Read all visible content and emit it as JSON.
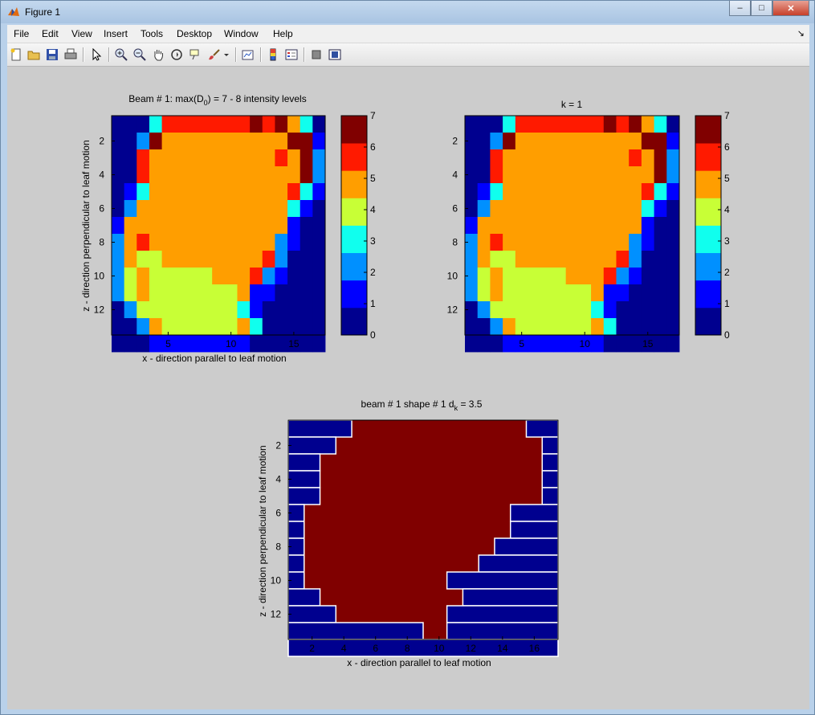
{
  "window": {
    "title": "Figure 1",
    "buttons": {
      "minimize": "–",
      "maximize": "□",
      "close": "✕"
    }
  },
  "menu": {
    "items": [
      "File",
      "Edit",
      "View",
      "Insert",
      "Tools",
      "Desktop",
      "Window",
      "Help"
    ],
    "end_arrow": "↘"
  },
  "toolbar": {
    "icons": [
      "new-figure-icon",
      "open-file-icon",
      "save-icon",
      "print-icon",
      "edit-plot-arrow-icon",
      "zoom-in-icon",
      "zoom-out-icon",
      "pan-hand-icon",
      "rotate-3d-icon",
      "data-cursor-icon",
      "brush-icon",
      "brush-dropdown-icon",
      "link-plot-icon",
      "colorbar-icon",
      "legend-icon",
      "hide-plot-tools-icon",
      "show-plot-tools-icon"
    ]
  },
  "plots": {
    "top_left": {
      "title": "Beam # 1: max(D0) = 7 - 8 intensity levels",
      "title_parts": [
        "Beam # 1: max(D",
        "0",
        ") = 7 - 8 intensity levels"
      ],
      "xlabel": "x - direction parallel to leaf motion",
      "ylabel": "z - direction perpendicular to leaf motion",
      "xticks": [
        "5",
        "10",
        "15"
      ],
      "yticks": [
        "2",
        "4",
        "6",
        "8",
        "10",
        "12"
      ],
      "colorbar_ticks": [
        "0",
        "1",
        "2",
        "3",
        "4",
        "5",
        "6",
        "7"
      ]
    },
    "top_right": {
      "title": "k = 1",
      "xticks": [
        "5",
        "10",
        "15"
      ],
      "yticks": [
        "2",
        "4",
        "6",
        "8",
        "10",
        "12"
      ],
      "colorbar_ticks": [
        "0",
        "1",
        "2",
        "3",
        "4",
        "5",
        "6",
        "7"
      ]
    },
    "bottom": {
      "title_parts": [
        "beam # 1 shape # 1 d",
        "k",
        " = 3.5"
      ],
      "xlabel": "x - direction parallel to leaf motion",
      "ylabel": "z - direction perpendicular to leaf motion",
      "xticks": [
        "2",
        "4",
        "6",
        "8",
        "10",
        "12",
        "14",
        "16"
      ],
      "yticks": [
        "2",
        "4",
        "6",
        "8",
        "10",
        "12"
      ]
    }
  },
  "chart_data": [
    {
      "type": "heatmap",
      "title": "Beam # 1: max(D0) = 7 - 8 intensity levels",
      "xlabel": "x - direction parallel to leaf motion",
      "ylabel": "z - direction perpendicular to leaf motion",
      "xlim": [
        0.5,
        17.5
      ],
      "ylim": [
        0.5,
        13.5
      ],
      "clim": [
        0,
        7
      ],
      "colormap": "jet",
      "matrix": [
        [
          0,
          0,
          0,
          3,
          6,
          6,
          6,
          6,
          6,
          6,
          6,
          7,
          6,
          7,
          5,
          3,
          0
        ],
        [
          0,
          0,
          2,
          7,
          5,
          5,
          5,
          5,
          5,
          5,
          5,
          5,
          5,
          5,
          7,
          7,
          1
        ],
        [
          0,
          0,
          6,
          5,
          5,
          5,
          5,
          5,
          5,
          5,
          5,
          5,
          5,
          6,
          5,
          7,
          2
        ],
        [
          0,
          0,
          6,
          5,
          5,
          5,
          5,
          5,
          5,
          5,
          5,
          5,
          5,
          5,
          5,
          7,
          2
        ],
        [
          0,
          1,
          3,
          5,
          5,
          5,
          5,
          5,
          5,
          5,
          5,
          5,
          5,
          5,
          6,
          3,
          1
        ],
        [
          0,
          2,
          5,
          5,
          5,
          5,
          5,
          5,
          5,
          5,
          5,
          5,
          5,
          5,
          3,
          1,
          0
        ],
        [
          1,
          5,
          5,
          5,
          5,
          5,
          5,
          5,
          5,
          5,
          5,
          5,
          5,
          5,
          1,
          0,
          0
        ],
        [
          2,
          5,
          6,
          5,
          5,
          5,
          5,
          5,
          5,
          5,
          5,
          5,
          5,
          2,
          1,
          0,
          0
        ],
        [
          2,
          5,
          4,
          4,
          5,
          5,
          5,
          5,
          5,
          5,
          5,
          5,
          6,
          2,
          0,
          0,
          0
        ],
        [
          2,
          4,
          5,
          4,
          4,
          4,
          4,
          4,
          5,
          5,
          5,
          6,
          2,
          1,
          0,
          0,
          0
        ],
        [
          2,
          4,
          5,
          4,
          4,
          4,
          4,
          4,
          4,
          4,
          5,
          1,
          1,
          0,
          0,
          0,
          0
        ],
        [
          0,
          2,
          4,
          4,
          4,
          4,
          4,
          4,
          4,
          4,
          3,
          1,
          0,
          0,
          0,
          0,
          0
        ],
        [
          0,
          0,
          2,
          5,
          4,
          4,
          4,
          4,
          4,
          4,
          5,
          3,
          0,
          0,
          0,
          0,
          0
        ],
        [
          0,
          0,
          0,
          1,
          1,
          1,
          1,
          1,
          1,
          1,
          1,
          0,
          0,
          0,
          0,
          0,
          0
        ]
      ]
    },
    {
      "type": "heatmap",
      "title": "k = 1",
      "xlim": [
        0.5,
        17.5
      ],
      "ylim": [
        0.5,
        13.5
      ],
      "clim": [
        0,
        7
      ],
      "colormap": "jet",
      "matrix": [
        [
          0,
          0,
          0,
          3,
          6,
          6,
          6,
          6,
          6,
          6,
          6,
          7,
          6,
          7,
          5,
          3,
          0
        ],
        [
          0,
          0,
          2,
          7,
          5,
          5,
          5,
          5,
          5,
          5,
          5,
          5,
          5,
          5,
          7,
          7,
          1
        ],
        [
          0,
          0,
          6,
          5,
          5,
          5,
          5,
          5,
          5,
          5,
          5,
          5,
          5,
          6,
          5,
          7,
          2
        ],
        [
          0,
          0,
          6,
          5,
          5,
          5,
          5,
          5,
          5,
          5,
          5,
          5,
          5,
          5,
          5,
          7,
          2
        ],
        [
          0,
          1,
          3,
          5,
          5,
          5,
          5,
          5,
          5,
          5,
          5,
          5,
          5,
          5,
          6,
          3,
          1
        ],
        [
          0,
          2,
          5,
          5,
          5,
          5,
          5,
          5,
          5,
          5,
          5,
          5,
          5,
          5,
          3,
          1,
          0
        ],
        [
          1,
          5,
          5,
          5,
          5,
          5,
          5,
          5,
          5,
          5,
          5,
          5,
          5,
          5,
          1,
          0,
          0
        ],
        [
          2,
          5,
          6,
          5,
          5,
          5,
          5,
          5,
          5,
          5,
          5,
          5,
          5,
          2,
          1,
          0,
          0
        ],
        [
          2,
          5,
          4,
          4,
          5,
          5,
          5,
          5,
          5,
          5,
          5,
          5,
          6,
          2,
          0,
          0,
          0
        ],
        [
          2,
          4,
          5,
          4,
          4,
          4,
          4,
          4,
          5,
          5,
          5,
          6,
          2,
          1,
          0,
          0,
          0
        ],
        [
          2,
          4,
          5,
          4,
          4,
          4,
          4,
          4,
          4,
          4,
          5,
          1,
          1,
          0,
          0,
          0,
          0
        ],
        [
          0,
          2,
          4,
          4,
          4,
          4,
          4,
          4,
          4,
          4,
          3,
          1,
          0,
          0,
          0,
          0,
          0
        ],
        [
          0,
          0,
          2,
          5,
          4,
          4,
          4,
          4,
          4,
          4,
          5,
          3,
          0,
          0,
          0,
          0,
          0
        ],
        [
          0,
          0,
          0,
          1,
          1,
          1,
          1,
          1,
          1,
          1,
          1,
          0,
          0,
          0,
          0,
          0,
          0
        ]
      ]
    },
    {
      "type": "heatmap",
      "title": "beam # 1 shape # 1 dk = 3.5",
      "xlabel": "x - direction parallel to leaf motion",
      "ylabel": "z - direction perpendicular to leaf motion",
      "xlim": [
        0.5,
        17.5
      ],
      "ylim": [
        0.5,
        13.5
      ],
      "rows": [
        1,
        2,
        3,
        4,
        5,
        6,
        7,
        8,
        9,
        10,
        11,
        12,
        13,
        14
      ],
      "left_leaf_edge": [
        4.5,
        3.5,
        2.5,
        2.5,
        2.5,
        1.5,
        1.5,
        1.5,
        1.5,
        1.5,
        2.5,
        3.5,
        9,
        17.5
      ],
      "right_leaf_edge": [
        15.5,
        16.5,
        16.5,
        16.5,
        16.5,
        14.5,
        14.5,
        13.5,
        12.5,
        10.5,
        11.5,
        10.5,
        10.5,
        17.5
      ],
      "open_color": "#800000",
      "leaf_color": "#00008f"
    }
  ]
}
